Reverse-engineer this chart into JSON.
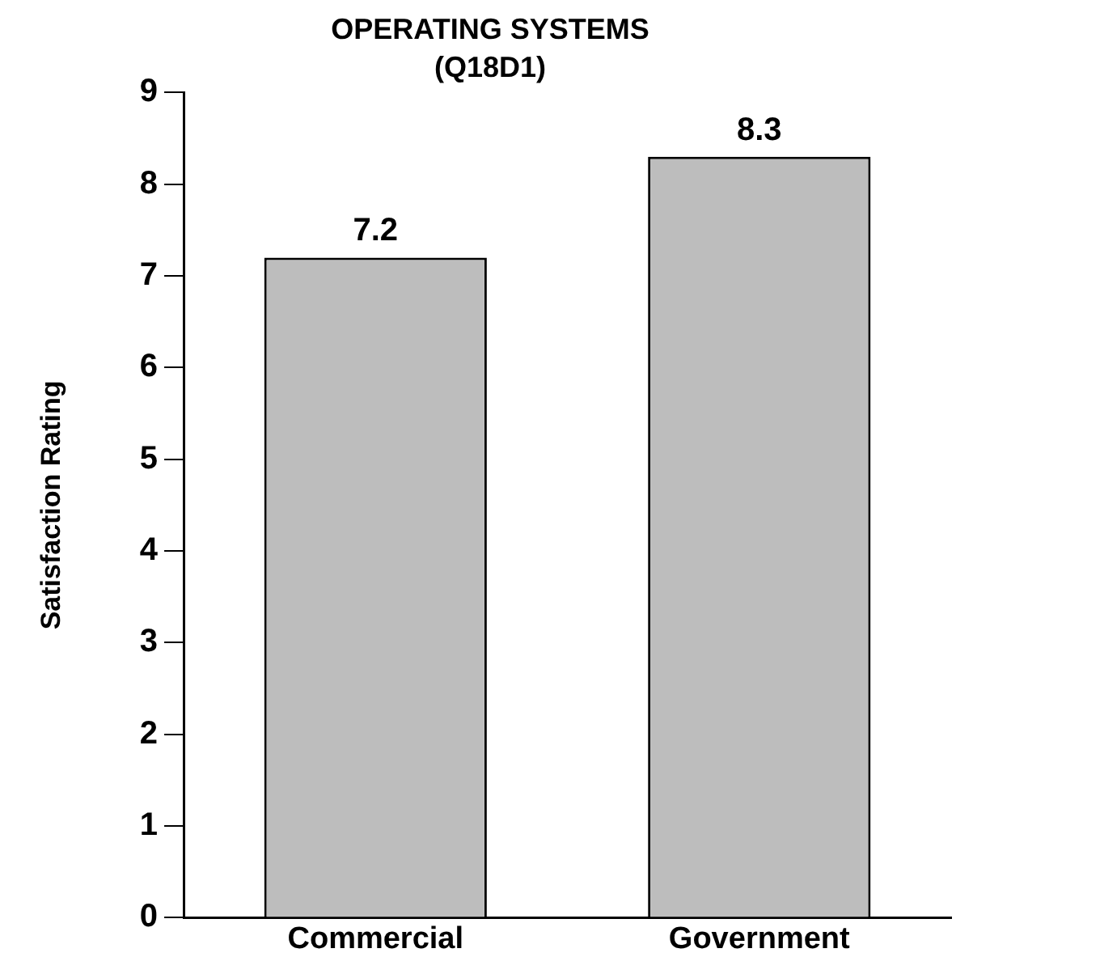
{
  "chart_data": {
    "type": "bar",
    "title": "OPERATING SYSTEMS",
    "subtitle": "(Q18D1)",
    "ylabel": "Satisfaction Rating",
    "categories": [
      "Commercial",
      "Government"
    ],
    "values": [
      7.2,
      8.3
    ],
    "color": "#bdbdbd",
    "ylim": [
      0,
      9
    ],
    "yticks": [
      0,
      1,
      2,
      3,
      4,
      5,
      6,
      7,
      8,
      9
    ],
    "grid": false,
    "legend": false,
    "data_labels": true
  }
}
